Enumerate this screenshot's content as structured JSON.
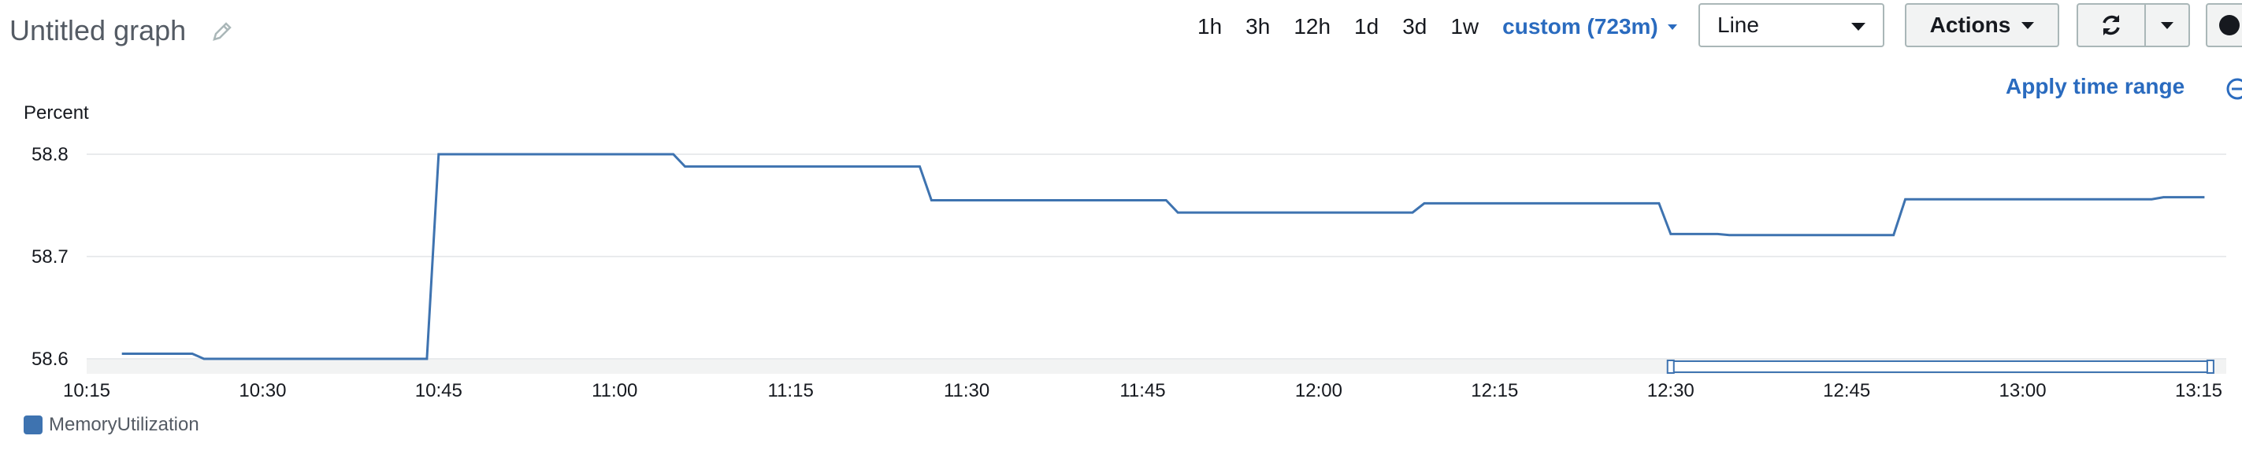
{
  "header": {
    "title": "Untitled graph",
    "time_ranges": [
      "1h",
      "3h",
      "12h",
      "1d",
      "3d",
      "1w"
    ],
    "custom_range": "custom (723m)",
    "chart_type_select": "Line",
    "actions_label": "Actions",
    "apply_time_range": "Apply time range"
  },
  "colors": {
    "series": "#3e73b0",
    "link": "#2a6bbf"
  },
  "chart_data": {
    "type": "line",
    "ylabel": "Percent",
    "ylim": [
      58.6,
      58.8
    ],
    "yticks": [
      58.6,
      58.7,
      58.8
    ],
    "xlim_minutes": [
      615,
      796
    ],
    "xticks": [
      {
        "m": 615,
        "label": "10:15"
      },
      {
        "m": 630,
        "label": "10:30"
      },
      {
        "m": 645,
        "label": "10:45"
      },
      {
        "m": 660,
        "label": "11:00"
      },
      {
        "m": 675,
        "label": "11:15"
      },
      {
        "m": 690,
        "label": "11:30"
      },
      {
        "m": 705,
        "label": "11:45"
      },
      {
        "m": 720,
        "label": "12:00"
      },
      {
        "m": 735,
        "label": "12:15"
      },
      {
        "m": 750,
        "label": "12:30"
      },
      {
        "m": 765,
        "label": "12:45"
      },
      {
        "m": 780,
        "label": "13:00"
      },
      {
        "m": 795,
        "label": "13:15"
      }
    ],
    "series": [
      {
        "name": "MemoryUtilization",
        "points": [
          [
            618,
            58.605
          ],
          [
            624,
            58.605
          ],
          [
            625,
            58.6
          ],
          [
            644,
            58.6
          ],
          [
            645,
            58.8
          ],
          [
            665,
            58.8
          ],
          [
            666,
            58.788
          ],
          [
            686,
            58.788
          ],
          [
            687,
            58.755
          ],
          [
            707,
            58.755
          ],
          [
            708,
            58.743
          ],
          [
            728,
            58.743
          ],
          [
            729,
            58.752
          ],
          [
            749,
            58.752
          ],
          [
            750,
            58.722
          ],
          [
            754,
            58.722
          ],
          [
            755,
            58.721
          ],
          [
            769,
            58.721
          ],
          [
            770,
            58.756
          ],
          [
            791,
            58.756
          ],
          [
            792,
            58.758
          ],
          [
            795.5,
            58.758
          ]
        ]
      }
    ],
    "navigator_range_minutes": [
      750,
      796
    ]
  }
}
